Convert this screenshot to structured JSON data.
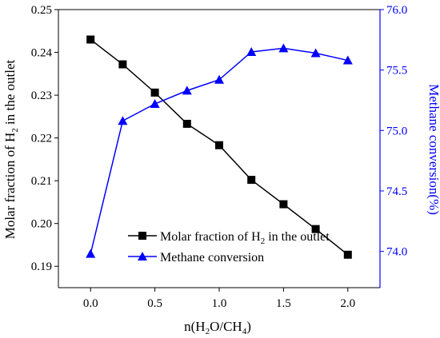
{
  "chart_data": {
    "type": "line",
    "title": "",
    "xlabel": "n(H2O/CH4)",
    "ylabel_left": "Molar fraction of H2 in the outlet",
    "ylabel_right": "Methane conversion(%)",
    "x": [
      0.0,
      0.25,
      0.5,
      0.75,
      1.0,
      1.25,
      1.5,
      1.75,
      2.0
    ],
    "xlim": [
      -0.25,
      2.25
    ],
    "xticks": [
      "0.0",
      "0.5",
      "1.0",
      "1.5",
      "2.0"
    ],
    "ylim_left": [
      0.185,
      0.25
    ],
    "yticks_left": [
      "0.19",
      "0.20",
      "0.21",
      "0.22",
      "0.23",
      "0.24",
      "0.25"
    ],
    "ylim_right": [
      73.7,
      76.0
    ],
    "yticks_right": [
      "74.0",
      "74.5",
      "75.0",
      "75.5",
      "76.0"
    ],
    "legend_position": "bottom-left",
    "series": [
      {
        "name": "Molar fraction of H2 in the outlet",
        "axis": "left",
        "color": "#000000",
        "marker": "square",
        "values": [
          0.243,
          0.2372,
          0.2306,
          0.2233,
          0.2183,
          0.2102,
          0.2045,
          0.1987,
          0.1927
        ]
      },
      {
        "name": "Methane conversion",
        "axis": "right",
        "color": "#0000ff",
        "marker": "triangle",
        "values": [
          73.98,
          75.08,
          75.22,
          75.33,
          75.42,
          75.65,
          75.68,
          75.64,
          75.58
        ]
      }
    ]
  }
}
